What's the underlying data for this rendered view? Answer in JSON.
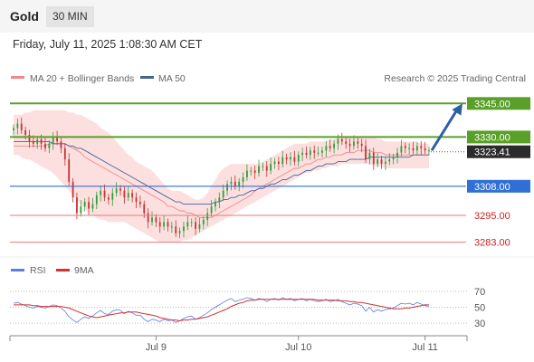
{
  "header": {
    "title": "Gold",
    "timeframe": "30 MIN"
  },
  "subheader": {
    "datetime": "Friday, July 11, 2025 1:08:30 AM CET"
  },
  "legend": {
    "bb_label": "MA 20 + Bollinger Bands",
    "ma50_label": "MA 50",
    "source": "Research © 2025 Trading Central",
    "rsi_label": "RSI",
    "rsi_ma_label": "9MA"
  },
  "colors": {
    "up": "#2f9e3a",
    "down": "#c83232",
    "ma50": "#45659a",
    "ma20": "#f08a8a",
    "band": "#fbd5d5",
    "resistance": "#5aa028",
    "support": "#2f6fd6",
    "minor_support": "#e57a7a",
    "arrow": "#2d5ea8",
    "rsi": "#5b7fe0",
    "rsi_ma": "#d43030"
  },
  "chart_data": [
    {
      "type": "candlestick",
      "name": "price",
      "ylim": [
        3278,
        3352
      ],
      "x_ticks": [
        "Jul 9",
        "Jul 10",
        "Jul 11"
      ],
      "last_price": "3323.41",
      "levels": [
        {
          "label": "3345.00",
          "value": 3345,
          "kind": "resistance"
        },
        {
          "label": "3330.00",
          "value": 3330,
          "kind": "resistance"
        },
        {
          "label": "3308.00",
          "value": 3308,
          "kind": "support"
        },
        {
          "label": "3295.00",
          "value": 3295,
          "kind": "minor"
        },
        {
          "label": "3283.00",
          "value": 3283,
          "kind": "minor"
        }
      ],
      "forecast_arrow": {
        "from": 3324,
        "to": 3345
      },
      "closes": [
        3334,
        3336,
        3333,
        3331,
        3328,
        3327,
        3329,
        3327,
        3325,
        3327,
        3330,
        3328,
        3325,
        3320,
        3310,
        3303,
        3296,
        3299,
        3301,
        3298,
        3300,
        3304,
        3306,
        3303,
        3302,
        3305,
        3307,
        3306,
        3303,
        3305,
        3303,
        3301,
        3300,
        3296,
        3292,
        3294,
        3292,
        3290,
        3292,
        3290,
        3290,
        3287,
        3288,
        3290,
        3292,
        3292,
        3289,
        3291,
        3293,
        3296,
        3299,
        3301,
        3303,
        3306,
        3309,
        3310,
        3308,
        3310,
        3312,
        3315,
        3315,
        3314,
        3317,
        3317,
        3315,
        3318,
        3319,
        3318,
        3321,
        3320,
        3321,
        3319,
        3322,
        3323,
        3322,
        3324,
        3323,
        3323,
        3324,
        3326,
        3325,
        3327,
        3329,
        3328,
        3327,
        3326,
        3328,
        3327,
        3326,
        3320,
        3323,
        3318,
        3320,
        3318,
        3319,
        3320,
        3321,
        3323,
        3326,
        3325,
        3325,
        3324,
        3326,
        3325,
        3324,
        3324
      ],
      "ma20": [
        3326,
        3326,
        3326,
        3326,
        3326,
        3326,
        3326,
        3326,
        3326,
        3327,
        3327,
        3327,
        3327,
        3327,
        3326,
        3325,
        3324,
        3323,
        3321,
        3320,
        3319,
        3318,
        3317,
        3316,
        3315,
        3314,
        3313,
        3312,
        3311,
        3310,
        3309,
        3308,
        3307,
        3306,
        3305,
        3304,
        3303,
        3302,
        3301,
        3299,
        3299,
        3298,
        3297,
        3297,
        3296,
        3296,
        3295,
        3294,
        3294,
        3294,
        3294,
        3295,
        3296,
        3297,
        3298,
        3299,
        3300,
        3301,
        3302,
        3303,
        3304,
        3306,
        3307,
        3308,
        3309,
        3310,
        3311,
        3312,
        3313,
        3314,
        3315,
        3316,
        3316,
        3317,
        3318,
        3318,
        3319,
        3320,
        3320,
        3321,
        3321,
        3322,
        3322,
        3322,
        3323,
        3323,
        3323,
        3324,
        3324,
        3324,
        3324,
        3323,
        3323,
        3323,
        3322,
        3322,
        3322,
        3322,
        3322,
        3322,
        3322,
        3322,
        3322,
        3322,
        3322,
        3322
      ],
      "bb_upper": [
        3340,
        3340,
        3340,
        3341,
        3341,
        3342,
        3342,
        3342,
        3342,
        3342,
        3342,
        3342,
        3342,
        3342,
        3341,
        3341,
        3340,
        3340,
        3339,
        3338,
        3337,
        3336,
        3334,
        3333,
        3332,
        3330,
        3328,
        3326,
        3324,
        3322,
        3321,
        3319,
        3318,
        3317,
        3316,
        3315,
        3313,
        3311,
        3309,
        3307,
        3306,
        3306,
        3306,
        3305,
        3304,
        3303,
        3302,
        3302,
        3303,
        3305,
        3308,
        3311,
        3314,
        3316,
        3317,
        3318,
        3318,
        3318,
        3318,
        3318,
        3318,
        3318,
        3318,
        3319,
        3320,
        3321,
        3322,
        3323,
        3324,
        3325,
        3326,
        3327,
        3327,
        3327,
        3327,
        3328,
        3328,
        3328,
        3328,
        3328,
        3329,
        3329,
        3330,
        3330,
        3330,
        3330,
        3330,
        3330,
        3330,
        3330,
        3330,
        3330,
        3329,
        3329,
        3328,
        3328,
        3328,
        3328,
        3328,
        3328,
        3328,
        3328,
        3328,
        3327,
        3327,
        3327
      ],
      "bb_lower": [
        3322,
        3322,
        3321,
        3320,
        3320,
        3319,
        3318,
        3317,
        3316,
        3315,
        3314,
        3312,
        3310,
        3308,
        3306,
        3304,
        3302,
        3300,
        3298,
        3296,
        3295,
        3294,
        3293,
        3293,
        3292,
        3292,
        3292,
        3292,
        3292,
        3291,
        3290,
        3289,
        3288,
        3287,
        3286,
        3285,
        3284,
        3283,
        3283,
        3283,
        3283,
        3283,
        3283,
        3284,
        3284,
        3285,
        3286,
        3287,
        3288,
        3289,
        3290,
        3291,
        3292,
        3293,
        3294,
        3295,
        3296,
        3297,
        3298,
        3299,
        3300,
        3301,
        3302,
        3303,
        3304,
        3305,
        3306,
        3307,
        3308,
        3309,
        3310,
        3311,
        3312,
        3313,
        3314,
        3314,
        3315,
        3315,
        3316,
        3316,
        3317,
        3317,
        3317,
        3318,
        3318,
        3318,
        3318,
        3318,
        3318,
        3318,
        3318,
        3317,
        3317,
        3317,
        3316,
        3316,
        3316,
        3316,
        3316,
        3316,
        3316,
        3316,
        3316,
        3316,
        3316,
        3316
      ],
      "ma50": [
        3328,
        3328,
        3328,
        3328,
        3328,
        3328,
        3328,
        3328,
        3328,
        3328,
        3327,
        3327,
        3327,
        3327,
        3326,
        3326,
        3325,
        3325,
        3324,
        3323,
        3322,
        3321,
        3320,
        3319,
        3318,
        3317,
        3316,
        3315,
        3314,
        3313,
        3312,
        3311,
        3310,
        3309,
        3308,
        3307,
        3306,
        3305,
        3304,
        3303,
        3302,
        3301,
        3301,
        3300,
        3300,
        3300,
        3300,
        3300,
        3300,
        3300,
        3300,
        3301,
        3301,
        3302,
        3302,
        3303,
        3303,
        3304,
        3304,
        3305,
        3306,
        3306,
        3307,
        3307,
        3308,
        3309,
        3309,
        3310,
        3311,
        3311,
        3312,
        3313,
        3313,
        3314,
        3315,
        3315,
        3316,
        3317,
        3317,
        3318,
        3318,
        3318,
        3319,
        3319,
        3319,
        3320,
        3320,
        3320,
        3320,
        3320,
        3321,
        3321,
        3321,
        3321,
        3321,
        3321,
        3321,
        3321,
        3321,
        3321,
        3321,
        3322,
        3322,
        3322,
        3322,
        3322
      ]
    },
    {
      "type": "line",
      "name": "rsi",
      "ylim": [
        20,
        80
      ],
      "y_ticks": [
        70,
        50,
        30
      ],
      "series": [
        {
          "name": "RSI",
          "values": [
            55,
            56,
            54,
            52,
            50,
            49,
            51,
            50,
            49,
            51,
            53,
            52,
            49,
            45,
            38,
            34,
            31,
            35,
            38,
            36,
            39,
            43,
            46,
            42,
            41,
            45,
            47,
            46,
            42,
            45,
            43,
            40,
            40,
            35,
            32,
            35,
            34,
            32,
            35,
            33,
            34,
            31,
            33,
            36,
            38,
            39,
            35,
            37,
            40,
            43,
            47,
            50,
            53,
            56,
            59,
            61,
            57,
            59,
            60,
            62,
            61,
            59,
            61,
            60,
            57,
            60,
            61,
            59,
            62,
            60,
            61,
            58,
            60,
            61,
            58,
            60,
            58,
            57,
            58,
            60,
            57,
            58,
            60,
            57,
            55,
            53,
            55,
            54,
            52,
            45,
            50,
            44,
            47,
            45,
            47,
            48,
            49,
            52,
            55,
            54,
            55,
            53,
            56,
            54,
            52,
            51
          ]
        },
        {
          "name": "9MA",
          "values": [
            53,
            53,
            53,
            53,
            53,
            52,
            52,
            51,
            51,
            51,
            51,
            51,
            51,
            50,
            49,
            47,
            45,
            43,
            41,
            39,
            38,
            37,
            38,
            39,
            40,
            41,
            42,
            43,
            43,
            44,
            44,
            44,
            43,
            42,
            41,
            40,
            39,
            37,
            36,
            35,
            34,
            34,
            33,
            34,
            34,
            35,
            35,
            36,
            37,
            38,
            40,
            42,
            44,
            46,
            48,
            51,
            53,
            55,
            56,
            58,
            59,
            59,
            60,
            60,
            60,
            60,
            60,
            60,
            60,
            60,
            60,
            60,
            60,
            60,
            60,
            60,
            60,
            59,
            59,
            59,
            59,
            59,
            58,
            58,
            58,
            57,
            57,
            56,
            56,
            55,
            54,
            53,
            52,
            51,
            50,
            49,
            48,
            48,
            48,
            49,
            49,
            50,
            51,
            52,
            53,
            53
          ]
        }
      ]
    }
  ]
}
